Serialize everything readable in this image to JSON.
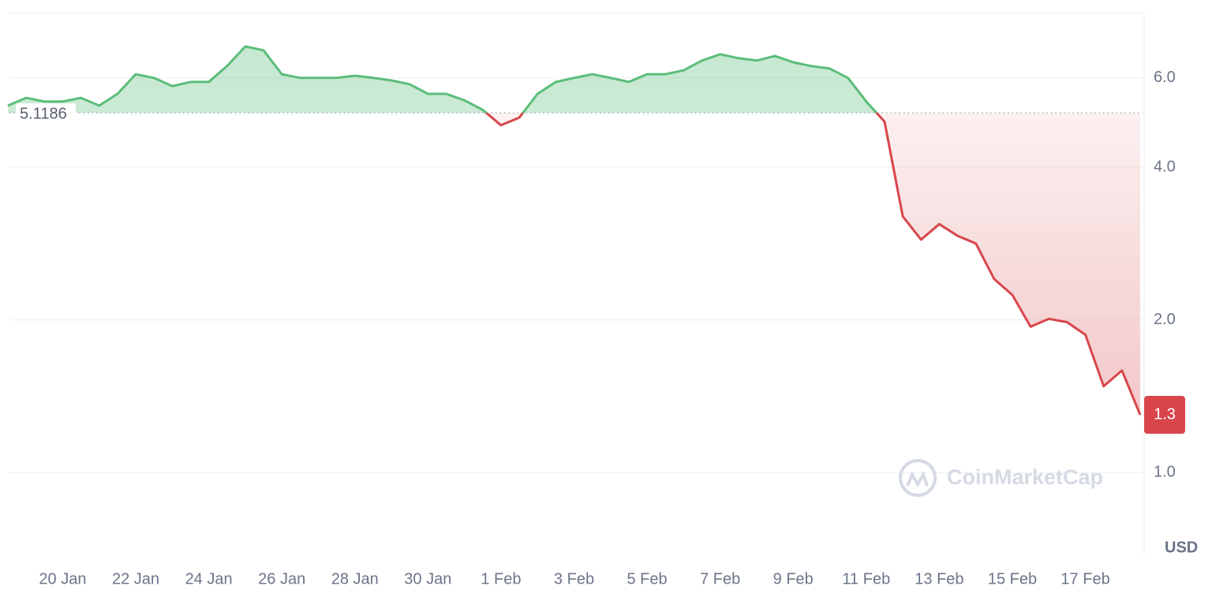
{
  "chart_data": {
    "type": "line",
    "categories": [
      null,
      null,
      null,
      "20 Jan",
      null,
      null,
      null,
      "22 Jan",
      null,
      null,
      null,
      "24 Jan",
      null,
      null,
      null,
      "26 Jan",
      null,
      null,
      null,
      "28 Jan",
      null,
      null,
      null,
      "30 Jan",
      null,
      null,
      null,
      "1 Feb",
      null,
      null,
      null,
      "3 Feb",
      null,
      null,
      null,
      "5 Feb",
      null,
      null,
      null,
      "7 Feb",
      null,
      null,
      null,
      "9 Feb",
      null,
      null,
      null,
      "11 Feb",
      null,
      null,
      null,
      "13 Feb",
      null,
      null,
      null,
      "15 Feb",
      null,
      null,
      null,
      "17 Feb",
      null,
      null,
      null
    ],
    "values": [
      5.29,
      5.48,
      5.39,
      5.39,
      5.48,
      5.29,
      5.58,
      6.1,
      6.0,
      5.78,
      5.89,
      5.89,
      6.33,
      6.92,
      6.8,
      6.1,
      6.0,
      6.0,
      6.0,
      6.06,
      6.0,
      5.93,
      5.83,
      5.58,
      5.58,
      5.42,
      5.19,
      4.84,
      5.01,
      5.58,
      5.89,
      6.0,
      6.1,
      6.0,
      5.89,
      6.1,
      6.1,
      6.21,
      6.49,
      6.68,
      6.56,
      6.49,
      6.63,
      6.44,
      6.33,
      6.26,
      6.0,
      5.39,
      4.92,
      3.2,
      2.88,
      3.09,
      2.93,
      2.83,
      2.41,
      2.24,
      1.94,
      2.01,
      1.98,
      1.87,
      1.48,
      1.59,
      1.3
    ],
    "baseline": 5.1186,
    "up_color": "#5bbd79",
    "down_color": "#d8464b",
    "log_scale": true,
    "grid": true,
    "ylim": [
      0.69,
      8.04
    ],
    "yticks": [
      {
        "value": 1,
        "label": "1.0"
      },
      {
        "value": 2,
        "label": "2.0"
      },
      {
        "value": 4,
        "label": "4.0"
      },
      {
        "value": 6,
        "label": "6.0"
      }
    ],
    "axis_unit": "USD",
    "watermark": "CoinMarketCap"
  }
}
